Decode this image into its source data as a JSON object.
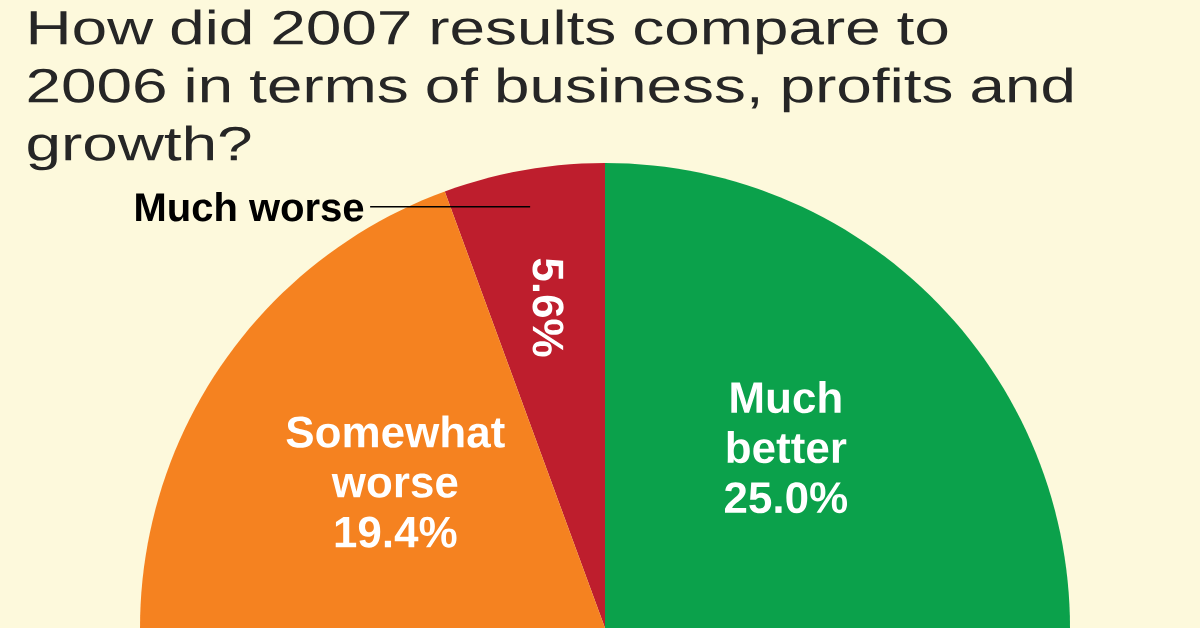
{
  "chart_data": {
    "type": "pie",
    "title": "How did 2007 results compare to 2006 in terms of business, profits and growth?",
    "categories": [
      "Much better",
      "Much worse",
      "Somewhat worse"
    ],
    "values": [
      25.0,
      5.6,
      19.4
    ],
    "colors": [
      "#0ba14b",
      "#be1e2d",
      "#f58220"
    ],
    "value_labels": [
      "25.0%",
      "5.6%",
      "19.4%"
    ]
  }
}
